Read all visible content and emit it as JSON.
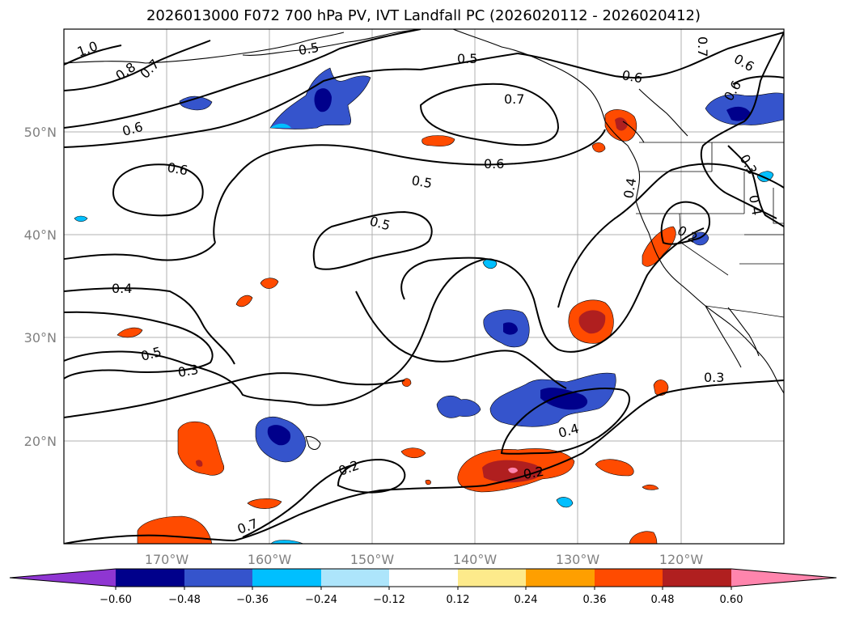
{
  "title": "2026013000 F072 700 hPa PV, IVT Landfall PC (2026020112 - 2026020412)",
  "latitude_labels": [
    "50°N",
    "40°N",
    "30°N",
    "20°N"
  ],
  "longitude_labels": [
    "170°W",
    "160°W",
    "150°W",
    "140°W",
    "130°W",
    "120°W"
  ],
  "contour_labels": [
    "1.0",
    "0.8",
    "0.7",
    "0.5",
    "0.5",
    "0.7",
    "0.6",
    "0.6",
    "0.7",
    "0.6",
    "0.6",
    "0.6",
    "0.5",
    "0.6",
    "0.5",
    "0.4",
    "0.3",
    "0.4",
    "0.2",
    "0.4",
    "0.5",
    "0.3",
    "0.3",
    "0.4",
    "0.2",
    "0.2",
    "0.7"
  ],
  "colorbar": {
    "ticks": [
      "−0.60",
      "−0.48",
      "−0.36",
      "−0.24",
      "−0.12",
      "0.12",
      "0.24",
      "0.36",
      "0.48",
      "0.60"
    ],
    "colors": [
      "#8f36d2",
      "#00008b",
      "#3554cc",
      "#00bfff",
      "#ade5fb",
      "#ffffff",
      "#fdea8b",
      "#fe9f00",
      "#ff4b00",
      "#b01f1f",
      "#ff85ad"
    ]
  },
  "colors": {
    "contour": "#000000",
    "grid": "#b0b0b0",
    "coast": "#000000",
    "label_grey": "#808080"
  }
}
